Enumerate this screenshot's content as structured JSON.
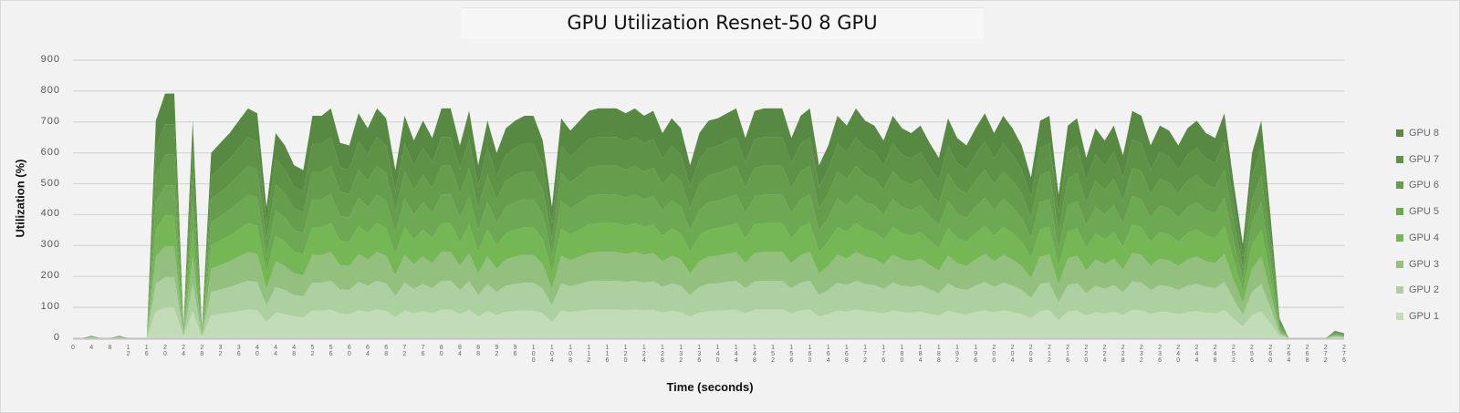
{
  "chart_data": {
    "type": "area",
    "stacked": true,
    "title": "GPU Utilization Resnet-50 8 GPU",
    "xlabel": "Time (seconds)",
    "ylabel": "Utilization (%)",
    "ylim": [
      0,
      900
    ],
    "y_ticks": [
      "0",
      "100",
      "200",
      "300",
      "400",
      "500",
      "600",
      "700",
      "800",
      "900"
    ],
    "x_start": 0,
    "x_step": 2,
    "x_ticks": [
      "0",
      "4",
      "8",
      "12",
      "16",
      "20",
      "24",
      "28",
      "32",
      "36",
      "40",
      "44",
      "48",
      "52",
      "56",
      "60",
      "64",
      "68",
      "72",
      "76",
      "80",
      "84",
      "88",
      "92",
      "96",
      "100",
      "104",
      "108",
      "112",
      "116",
      "120",
      "124",
      "128",
      "132",
      "136",
      "140",
      "144",
      "148",
      "152",
      "156",
      "160",
      "164",
      "168",
      "172",
      "176",
      "180",
      "184",
      "188",
      "192",
      "196",
      "200",
      "204",
      "208",
      "212",
      "216",
      "220",
      "224",
      "228",
      "232",
      "236",
      "240",
      "244",
      "248",
      "252",
      "256",
      "260",
      "264",
      "268",
      "272",
      "276"
    ],
    "grid": true,
    "legend_position": "right",
    "series": [
      {
        "name": "GPU 1",
        "color": "#c3dcb8",
        "values": [
          0,
          0,
          1,
          0,
          0,
          1,
          0,
          0,
          0,
          88,
          99,
          99,
          5,
          88,
          4,
          75,
          79,
          83,
          88,
          93,
          91,
          53,
          83,
          78,
          70,
          68,
          90,
          90,
          93,
          79,
          78,
          91,
          85,
          93,
          89,
          68,
          90,
          80,
          88,
          81,
          93,
          93,
          78,
          92,
          70,
          88,
          75,
          85,
          88,
          90,
          90,
          80,
          53,
          89,
          84,
          88,
          92,
          93,
          93,
          93,
          91,
          93,
          90,
          92,
          83,
          89,
          85,
          70,
          83,
          88,
          89,
          91,
          93,
          81,
          92,
          93,
          93,
          93,
          81,
          90,
          93,
          70,
          78,
          90,
          86,
          93,
          88,
          86,
          80,
          90,
          85,
          83,
          86,
          79,
          73,
          89,
          81,
          78,
          85,
          91,
          83,
          90,
          85,
          78,
          65,
          88,
          90,
          58,
          86,
          89,
          73,
          85,
          80,
          86,
          74,
          92,
          90,
          78,
          86,
          84,
          78,
          85,
          88,
          83,
          81,
          91,
          63,
          38,
          75,
          88,
          50,
          8,
          0,
          0,
          0,
          0,
          0,
          3,
          2
        ]
      },
      {
        "name": "GPU 2",
        "color": "#acd09f",
        "values": [
          0,
          0,
          1,
          0,
          0,
          1,
          0,
          0,
          0,
          88,
          99,
          99,
          5,
          88,
          4,
          75,
          79,
          83,
          88,
          93,
          91,
          53,
          83,
          78,
          70,
          68,
          90,
          90,
          93,
          79,
          78,
          91,
          85,
          93,
          89,
          68,
          90,
          80,
          88,
          81,
          93,
          93,
          78,
          92,
          70,
          88,
          75,
          85,
          88,
          90,
          90,
          80,
          53,
          89,
          84,
          88,
          92,
          93,
          93,
          93,
          91,
          93,
          90,
          92,
          83,
          89,
          85,
          70,
          83,
          88,
          89,
          91,
          93,
          81,
          92,
          93,
          93,
          93,
          81,
          90,
          93,
          70,
          78,
          90,
          86,
          93,
          88,
          86,
          80,
          90,
          85,
          83,
          86,
          79,
          73,
          89,
          81,
          78,
          85,
          91,
          83,
          90,
          85,
          78,
          65,
          88,
          90,
          58,
          86,
          89,
          73,
          85,
          80,
          86,
          74,
          92,
          90,
          78,
          86,
          84,
          78,
          85,
          88,
          83,
          81,
          91,
          63,
          38,
          75,
          88,
          50,
          8,
          0,
          0,
          0,
          0,
          0,
          3,
          2
        ]
      },
      {
        "name": "GPU 3",
        "color": "#93c07e",
        "values": [
          0,
          0,
          1,
          0,
          0,
          1,
          0,
          0,
          0,
          88,
          99,
          99,
          5,
          88,
          4,
          75,
          79,
          83,
          88,
          93,
          91,
          53,
          83,
          78,
          70,
          68,
          90,
          90,
          93,
          79,
          78,
          91,
          85,
          93,
          89,
          68,
          90,
          80,
          88,
          81,
          93,
          93,
          78,
          92,
          70,
          88,
          75,
          85,
          88,
          90,
          90,
          80,
          53,
          89,
          84,
          88,
          92,
          93,
          93,
          93,
          91,
          93,
          90,
          92,
          83,
          89,
          85,
          70,
          83,
          88,
          89,
          91,
          93,
          81,
          92,
          93,
          93,
          93,
          81,
          90,
          93,
          70,
          78,
          90,
          86,
          93,
          88,
          86,
          80,
          90,
          85,
          83,
          86,
          79,
          73,
          89,
          81,
          78,
          85,
          91,
          83,
          90,
          85,
          78,
          65,
          88,
          90,
          58,
          86,
          89,
          73,
          85,
          80,
          86,
          74,
          92,
          90,
          78,
          86,
          84,
          78,
          85,
          88,
          83,
          81,
          91,
          63,
          38,
          75,
          88,
          50,
          8,
          0,
          0,
          0,
          0,
          0,
          3,
          2
        ]
      },
      {
        "name": "GPU 4",
        "color": "#75b655",
        "values": [
          0,
          0,
          1,
          0,
          0,
          1,
          0,
          0,
          0,
          88,
          99,
          99,
          5,
          88,
          4,
          75,
          79,
          83,
          88,
          93,
          91,
          53,
          83,
          78,
          70,
          68,
          90,
          90,
          93,
          79,
          78,
          91,
          85,
          93,
          89,
          68,
          90,
          80,
          88,
          81,
          93,
          93,
          78,
          92,
          70,
          88,
          75,
          85,
          88,
          90,
          90,
          80,
          53,
          89,
          84,
          88,
          92,
          93,
          93,
          93,
          91,
          93,
          90,
          92,
          83,
          89,
          85,
          70,
          83,
          88,
          89,
          91,
          93,
          81,
          92,
          93,
          93,
          93,
          81,
          90,
          93,
          70,
          78,
          90,
          86,
          93,
          88,
          86,
          80,
          90,
          85,
          83,
          86,
          79,
          73,
          89,
          81,
          78,
          85,
          91,
          83,
          90,
          85,
          78,
          65,
          88,
          90,
          58,
          86,
          89,
          73,
          85,
          80,
          86,
          74,
          92,
          90,
          78,
          86,
          84,
          78,
          85,
          88,
          83,
          81,
          91,
          63,
          38,
          75,
          88,
          50,
          8,
          0,
          0,
          0,
          0,
          0,
          3,
          2
        ]
      },
      {
        "name": "GPU 5",
        "color": "#6ca952",
        "values": [
          0,
          0,
          1,
          0,
          0,
          1,
          0,
          0,
          0,
          88,
          99,
          99,
          5,
          88,
          4,
          75,
          79,
          83,
          88,
          93,
          91,
          53,
          83,
          78,
          70,
          68,
          90,
          90,
          93,
          79,
          78,
          91,
          85,
          93,
          89,
          68,
          90,
          80,
          88,
          81,
          93,
          93,
          78,
          92,
          70,
          88,
          75,
          85,
          88,
          90,
          90,
          80,
          53,
          89,
          84,
          88,
          92,
          93,
          93,
          93,
          91,
          93,
          90,
          92,
          83,
          89,
          85,
          70,
          83,
          88,
          89,
          91,
          93,
          81,
          92,
          93,
          93,
          93,
          81,
          90,
          93,
          70,
          78,
          90,
          86,
          93,
          88,
          86,
          80,
          90,
          85,
          83,
          86,
          79,
          73,
          89,
          81,
          78,
          85,
          91,
          83,
          90,
          85,
          78,
          65,
          88,
          90,
          58,
          86,
          89,
          73,
          85,
          80,
          86,
          74,
          92,
          90,
          78,
          86,
          84,
          78,
          85,
          88,
          83,
          81,
          91,
          63,
          38,
          75,
          88,
          50,
          8,
          0,
          0,
          0,
          0,
          0,
          3,
          2
        ]
      },
      {
        "name": "GPU 6",
        "color": "#659d4c",
        "values": [
          0,
          0,
          1,
          0,
          0,
          1,
          0,
          0,
          0,
          88,
          99,
          99,
          5,
          88,
          4,
          75,
          79,
          83,
          88,
          93,
          91,
          53,
          83,
          78,
          70,
          68,
          90,
          90,
          93,
          79,
          78,
          91,
          85,
          93,
          89,
          68,
          90,
          80,
          88,
          81,
          93,
          93,
          78,
          92,
          70,
          88,
          75,
          85,
          88,
          90,
          90,
          80,
          53,
          89,
          84,
          88,
          92,
          93,
          93,
          93,
          91,
          93,
          90,
          92,
          83,
          89,
          85,
          70,
          83,
          88,
          89,
          91,
          93,
          81,
          92,
          93,
          93,
          93,
          81,
          90,
          93,
          70,
          78,
          90,
          86,
          93,
          88,
          86,
          80,
          90,
          85,
          83,
          86,
          79,
          73,
          89,
          81,
          78,
          85,
          91,
          83,
          90,
          85,
          78,
          65,
          88,
          90,
          58,
          86,
          89,
          73,
          85,
          80,
          86,
          74,
          92,
          90,
          78,
          86,
          84,
          78,
          85,
          88,
          83,
          81,
          91,
          63,
          38,
          75,
          88,
          50,
          8,
          0,
          0,
          0,
          0,
          0,
          3,
          2
        ]
      },
      {
        "name": "GPU 7",
        "color": "#5e9247",
        "values": [
          0,
          0,
          1,
          0,
          0,
          1,
          0,
          0,
          0,
          88,
          99,
          99,
          5,
          88,
          4,
          75,
          79,
          83,
          88,
          93,
          91,
          53,
          83,
          78,
          70,
          68,
          90,
          90,
          93,
          79,
          78,
          91,
          85,
          93,
          89,
          68,
          90,
          80,
          88,
          81,
          93,
          93,
          78,
          92,
          70,
          88,
          75,
          85,
          88,
          90,
          90,
          80,
          53,
          89,
          84,
          88,
          92,
          93,
          93,
          93,
          91,
          93,
          90,
          92,
          83,
          89,
          85,
          70,
          83,
          88,
          89,
          91,
          93,
          81,
          92,
          93,
          93,
          93,
          81,
          90,
          93,
          70,
          78,
          90,
          86,
          93,
          88,
          86,
          80,
          90,
          85,
          83,
          86,
          79,
          73,
          89,
          81,
          78,
          85,
          91,
          83,
          90,
          85,
          78,
          65,
          88,
          90,
          58,
          86,
          89,
          73,
          85,
          80,
          86,
          74,
          92,
          90,
          78,
          86,
          84,
          78,
          85,
          88,
          83,
          81,
          91,
          63,
          38,
          75,
          88,
          50,
          8,
          0,
          0,
          0,
          0,
          0,
          3,
          2
        ]
      },
      {
        "name": "GPU 8",
        "color": "#588943",
        "values": [
          0,
          0,
          1,
          0,
          0,
          1,
          0,
          0,
          0,
          88,
          99,
          99,
          5,
          88,
          4,
          75,
          79,
          83,
          88,
          93,
          91,
          53,
          83,
          78,
          70,
          68,
          90,
          90,
          93,
          79,
          78,
          91,
          85,
          93,
          89,
          68,
          90,
          80,
          88,
          81,
          93,
          93,
          78,
          92,
          70,
          88,
          75,
          85,
          88,
          90,
          90,
          80,
          53,
          89,
          84,
          88,
          92,
          93,
          93,
          93,
          91,
          93,
          90,
          92,
          83,
          89,
          85,
          70,
          83,
          88,
          89,
          91,
          93,
          81,
          92,
          93,
          93,
          93,
          81,
          90,
          93,
          70,
          78,
          90,
          86,
          93,
          88,
          86,
          80,
          90,
          85,
          83,
          86,
          79,
          73,
          89,
          81,
          78,
          85,
          91,
          83,
          90,
          85,
          78,
          65,
          88,
          90,
          58,
          86,
          89,
          73,
          85,
          80,
          86,
          74,
          92,
          90,
          78,
          86,
          84,
          78,
          85,
          88,
          83,
          81,
          91,
          63,
          38,
          75,
          88,
          50,
          8,
          0,
          0,
          0,
          0,
          0,
          3,
          2
        ]
      }
    ]
  }
}
